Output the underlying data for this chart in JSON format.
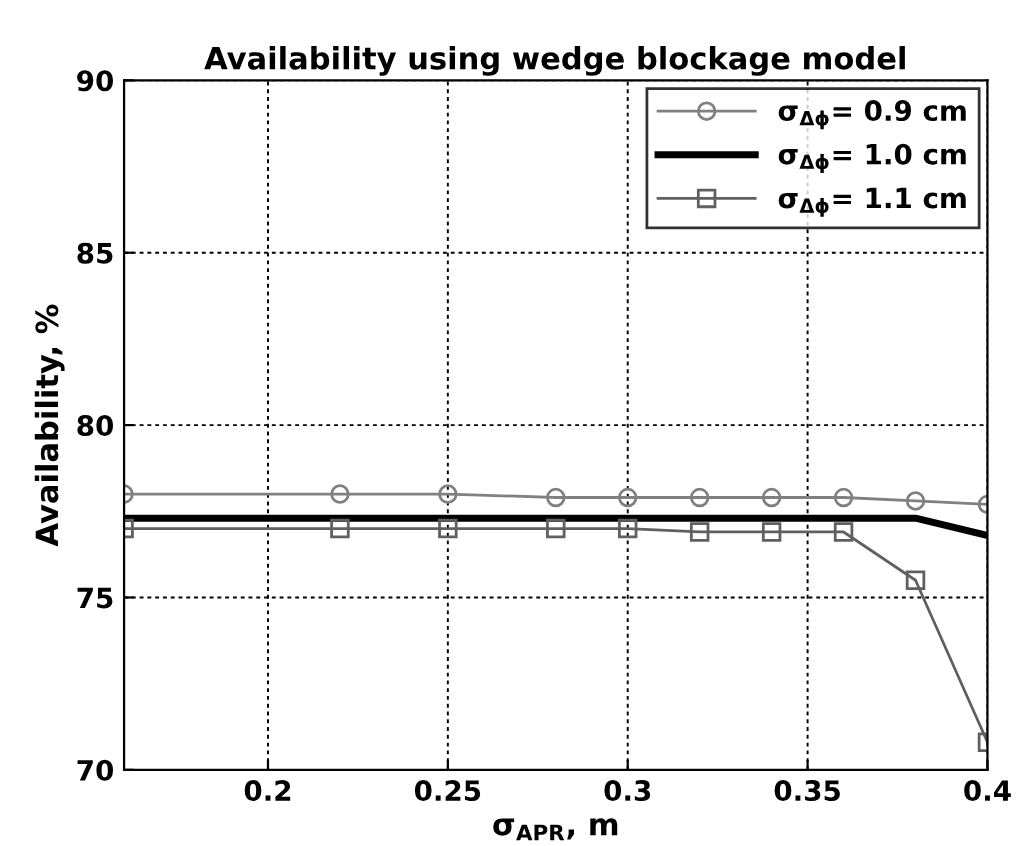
{
  "chart_data": {
    "type": "line",
    "title": "Availability using wedge blockage model",
    "xlabel": "σ$_{APR}$, m",
    "ylabel": "Availability, %",
    "x": [
      0.16,
      0.22,
      0.25,
      0.28,
      0.3,
      0.32,
      0.34,
      0.36,
      0.38,
      0.4
    ],
    "series": [
      {
        "name": "σ$_{Δϕ}$= 0.9 cm",
        "color": "#808080",
        "marker": "circle",
        "values": [
          78.0,
          78.0,
          78.0,
          77.9,
          77.9,
          77.9,
          77.9,
          77.9,
          77.8,
          77.7
        ]
      },
      {
        "name": "σ$_{Δϕ}$= 1.0 cm",
        "color": "#000000",
        "marker": "none",
        "values": [
          77.3,
          77.3,
          77.3,
          77.3,
          77.3,
          77.3,
          77.3,
          77.3,
          77.3,
          76.8
        ]
      },
      {
        "name": "σ$_{Δϕ}$= 1.1 cm",
        "color": "#606060",
        "marker": "square",
        "values": [
          77.0,
          77.0,
          77.0,
          77.0,
          77.0,
          76.9,
          76.9,
          76.9,
          75.5,
          70.8
        ]
      }
    ],
    "xlim": [
      0.16,
      0.4
    ],
    "xticks": [
      {
        "value": 0.2,
        "label": "0.2"
      },
      {
        "value": 0.25,
        "label": "0.25"
      },
      {
        "value": 0.3,
        "label": "0.3"
      },
      {
        "value": 0.35,
        "label": "0.35"
      },
      {
        "value": 0.4,
        "label": "0.4"
      }
    ],
    "ylim": [
      70,
      90
    ],
    "yticks": [
      70,
      75,
      80,
      85,
      90
    ],
    "grid": true,
    "legend": "top right",
    "line_style": "solid"
  }
}
